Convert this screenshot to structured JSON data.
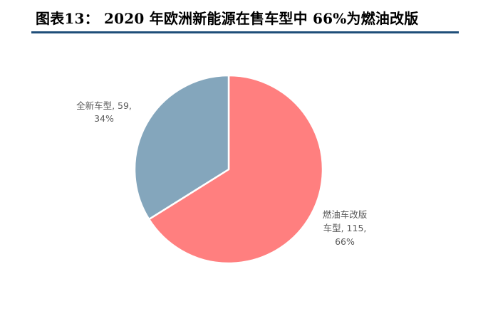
{
  "title": "图表13：  2020 年欧洲新能源在售车型中 66%为燃油改版",
  "colors": {
    "rule": "#1f4e79",
    "slice_fuel": "#ff7f7f",
    "slice_new": "#84a6bc",
    "slice_border": "#ffffff"
  },
  "chart_data": {
    "type": "pie",
    "title": "",
    "slices": [
      {
        "name": "燃油车改版车型",
        "value": 115,
        "percent": 66,
        "color": "#ff7f7f",
        "label_lines": [
          "燃油车改版",
          "车型, 115,",
          "66%"
        ]
      },
      {
        "name": "全新车型",
        "value": 59,
        "percent": 34,
        "color": "#84a6bc",
        "label_lines": [
          "全新车型, 59,",
          "34%"
        ]
      }
    ],
    "start_angle": "12 o'clock",
    "direction": "clockwise",
    "legend": "none"
  }
}
